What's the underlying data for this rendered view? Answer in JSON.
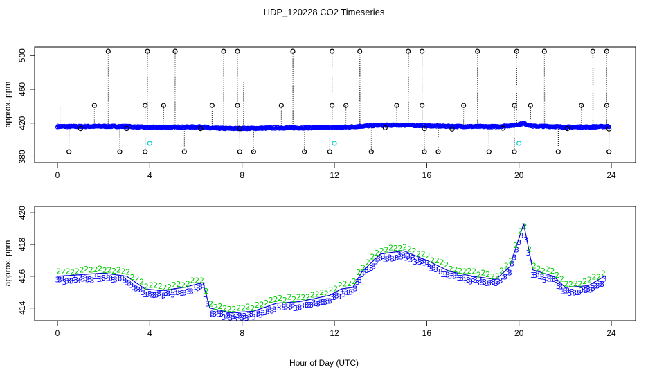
{
  "colors": {
    "background": "#ffffff",
    "axis": "#000000",
    "mark_black": "#000000",
    "mark_blue": "#0000ff",
    "mark_cyan": "#00cccc",
    "mark_green": "#00cc00",
    "line_blue": "#0000cc"
  },
  "chart_data": [
    {
      "type": "scatter",
      "title": "HDP_120228  CO2 Timeseries",
      "xlabel": "",
      "ylabel": "approx. ppm",
      "xlim": [
        0,
        24
      ],
      "ylim": [
        380,
        510
      ],
      "x_ticks": [
        "0",
        "4",
        "8",
        "12",
        "16",
        "20",
        "24"
      ],
      "y_ticks": [
        "380",
        "420",
        "460",
        "500"
      ],
      "grid": false,
      "baseline": [
        [
          0,
          416
        ],
        [
          1,
          416
        ],
        [
          2,
          416.2
        ],
        [
          3,
          416
        ],
        [
          3.8,
          415
        ],
        [
          4.5,
          415
        ],
        [
          5.5,
          415.3
        ],
        [
          6.3,
          415.6
        ],
        [
          6.6,
          414
        ],
        [
          7.5,
          413.6
        ],
        [
          8.5,
          413.8
        ],
        [
          9.5,
          414.3
        ],
        [
          10.5,
          414.4
        ],
        [
          11.8,
          414.7
        ],
        [
          12.5,
          415.2
        ],
        [
          13.2,
          416.4
        ],
        [
          14,
          417.5
        ],
        [
          15,
          417.6
        ],
        [
          16,
          416.8
        ],
        [
          17,
          416.2
        ],
        [
          18,
          416
        ],
        [
          19,
          415.8
        ],
        [
          19.8,
          417.5
        ],
        [
          20.2,
          419.6
        ],
        [
          20.6,
          416.4
        ],
        [
          21.5,
          416
        ],
        [
          22,
          415.2
        ],
        [
          23,
          415.4
        ],
        [
          23.7,
          416
        ]
      ],
      "spikes_high": [
        [
          2.2,
          505
        ],
        [
          3.9,
          505
        ],
        [
          5.1,
          505
        ],
        [
          7.2,
          505
        ],
        [
          7.8,
          505
        ],
        [
          10.2,
          505
        ],
        [
          11.9,
          505
        ],
        [
          13.1,
          505
        ],
        [
          15.2,
          505
        ],
        [
          15.8,
          505
        ],
        [
          18.2,
          505
        ],
        [
          19.9,
          505
        ],
        [
          21.1,
          505
        ],
        [
          23.2,
          505
        ],
        [
          23.8,
          505
        ]
      ],
      "spikes_mid": [
        [
          1.6,
          441
        ],
        [
          3.8,
          441
        ],
        [
          4.6,
          441
        ],
        [
          6.7,
          441
        ],
        [
          7.8,
          441
        ],
        [
          9.7,
          441
        ],
        [
          11.9,
          441
        ],
        [
          12.5,
          441
        ],
        [
          14.7,
          441
        ],
        [
          15.8,
          441
        ],
        [
          17.6,
          441
        ],
        [
          19.8,
          441
        ],
        [
          20.5,
          441
        ],
        [
          22.7,
          441
        ],
        [
          23.8,
          441
        ]
      ],
      "spikes_low": [
        [
          0.5,
          386
        ],
        [
          2.7,
          386
        ],
        [
          3.8,
          386
        ],
        [
          5.5,
          386
        ],
        [
          7.9,
          386
        ],
        [
          8.5,
          386
        ],
        [
          10.7,
          386
        ],
        [
          11.8,
          386
        ],
        [
          13.6,
          386
        ],
        [
          15.9,
          386
        ],
        [
          16.5,
          386
        ],
        [
          18.7,
          386
        ],
        [
          19.8,
          386
        ],
        [
          21.7,
          386
        ],
        [
          23.9,
          386
        ]
      ],
      "cyan_points": [
        [
          4.0,
          396
        ],
        [
          12.0,
          396
        ],
        [
          20.0,
          396
        ]
      ],
      "extra_points": [
        [
          1.0,
          413.5
        ],
        [
          3.0,
          413.5
        ],
        [
          6.2,
          413.5
        ],
        [
          7.9,
          413.5
        ],
        [
          14.2,
          414.5
        ],
        [
          15.9,
          413.5
        ],
        [
          17.1,
          413
        ],
        [
          19.3,
          414
        ],
        [
          22.1,
          413.5
        ],
        [
          23.9,
          413
        ]
      ]
    },
    {
      "type": "scatter",
      "title": "",
      "xlabel": "Hour of Day (UTC)",
      "ylabel": "approx. ppm",
      "xlim": [
        0,
        24
      ],
      "ylim": [
        413.2,
        420.4
      ],
      "x_ticks": [
        "0",
        "4",
        "8",
        "12",
        "16",
        "20",
        "24"
      ],
      "y_ticks": [
        "414",
        "416",
        "418",
        "420"
      ],
      "grid": false,
      "series": [
        {
          "name": "2",
          "marker": "2"
        },
        {
          "name": "3",
          "marker": "3"
        }
      ],
      "mean_curve": [
        [
          0,
          416
        ],
        [
          1,
          416.1
        ],
        [
          2,
          416.2
        ],
        [
          3,
          416
        ],
        [
          3.8,
          415.2
        ],
        [
          4.5,
          415.1
        ],
        [
          5.5,
          415.3
        ],
        [
          6.3,
          415.6
        ],
        [
          6.6,
          414
        ],
        [
          7.5,
          413.7
        ],
        [
          8.5,
          413.8
        ],
        [
          9.5,
          414.3
        ],
        [
          10.5,
          414.4
        ],
        [
          11.8,
          414.8
        ],
        [
          12.3,
          415.2
        ],
        [
          12.8,
          415.3
        ],
        [
          13.2,
          416.3
        ],
        [
          14,
          417.4
        ],
        [
          15,
          417.6
        ],
        [
          16,
          417
        ],
        [
          17,
          416.3
        ],
        [
          18,
          416
        ],
        [
          19,
          415.8
        ],
        [
          19.6,
          416.6
        ],
        [
          20.2,
          419.3
        ],
        [
          20.6,
          416.4
        ],
        [
          21.5,
          416
        ],
        [
          22,
          415.3
        ],
        [
          23,
          415.4
        ],
        [
          23.7,
          416
        ]
      ]
    }
  ]
}
